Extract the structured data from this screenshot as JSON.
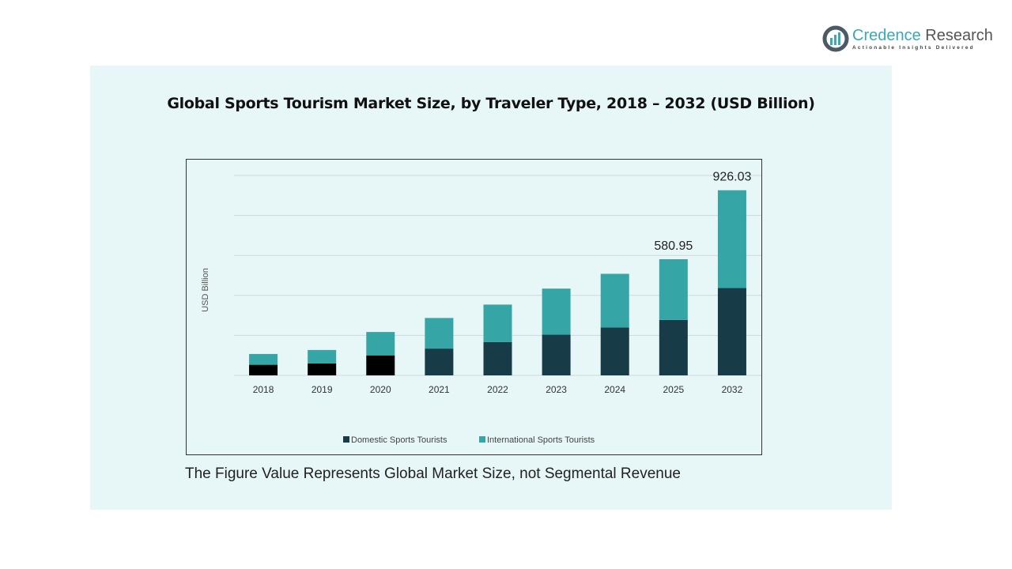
{
  "logo": {
    "name_part1": "Credence",
    "name_part2": "Research",
    "tagline": "Actionable Insights Delivered"
  },
  "footnote": "The Figure Value Represents Global Market Size, not Segmental Revenue",
  "chart_data": {
    "type": "bar",
    "stacked": true,
    "title": "Global Sports Tourism Market Size, by Traveler Type, 2018 – 2032 (USD Billion)",
    "xlabel": "",
    "ylabel": "USD Billion",
    "ylim": [
      0,
      1000
    ],
    "grid": true,
    "legend_position": "bottom",
    "categories": [
      "2018",
      "2019",
      "2020",
      "2021",
      "2022",
      "2023",
      "2024",
      "2025",
      "2032"
    ],
    "series": [
      {
        "name": "Domestic Sports Tourists",
        "color": "#173b47",
        "values": [
          53,
          60,
          100,
          134,
          167,
          204,
          240,
          277,
          437
        ]
      },
      {
        "name": "International Sports Tourists",
        "color": "#35a5a5",
        "values": [
          54,
          67,
          117,
          153,
          187,
          230,
          268,
          304,
          489
        ]
      }
    ],
    "early_domestic_color": "#000000",
    "data_labels": {
      "2025": "580.95",
      "2032": "926.03"
    }
  }
}
